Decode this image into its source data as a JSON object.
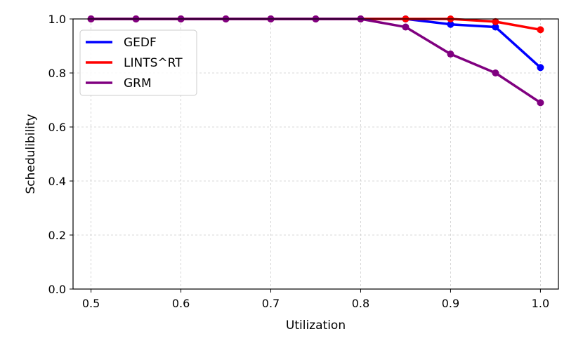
{
  "chart_data": {
    "type": "line",
    "title": "",
    "xlabel": "Utilization",
    "ylabel": "Schedulibility",
    "xlim": [
      0.48,
      1.02
    ],
    "ylim": [
      0.0,
      1.0
    ],
    "xticks": [
      "0.5",
      "0.6",
      "0.7",
      "0.8",
      "0.9",
      "1.0"
    ],
    "yticks": [
      "0.0",
      "0.2",
      "0.4",
      "0.6",
      "0.8",
      "1.0"
    ],
    "grid": true,
    "legend_position": "top-left",
    "x": [
      0.5,
      0.55,
      0.6,
      0.65,
      0.7,
      0.75,
      0.8,
      0.85,
      0.9,
      0.95,
      1.0
    ],
    "series": [
      {
        "name": "GEDF",
        "color": "#0000ff",
        "values": [
          1.0,
          1.0,
          1.0,
          1.0,
          1.0,
          1.0,
          1.0,
          1.0,
          0.98,
          0.97,
          0.82
        ]
      },
      {
        "name": "LINTS^RT",
        "color": "#ff0000",
        "values": [
          1.0,
          1.0,
          1.0,
          1.0,
          1.0,
          1.0,
          1.0,
          1.0,
          1.0,
          0.99,
          0.96
        ]
      },
      {
        "name": "GRM",
        "color": "#800080",
        "values": [
          1.0,
          1.0,
          1.0,
          1.0,
          1.0,
          1.0,
          1.0,
          0.97,
          0.87,
          0.8,
          0.69
        ]
      }
    ]
  }
}
